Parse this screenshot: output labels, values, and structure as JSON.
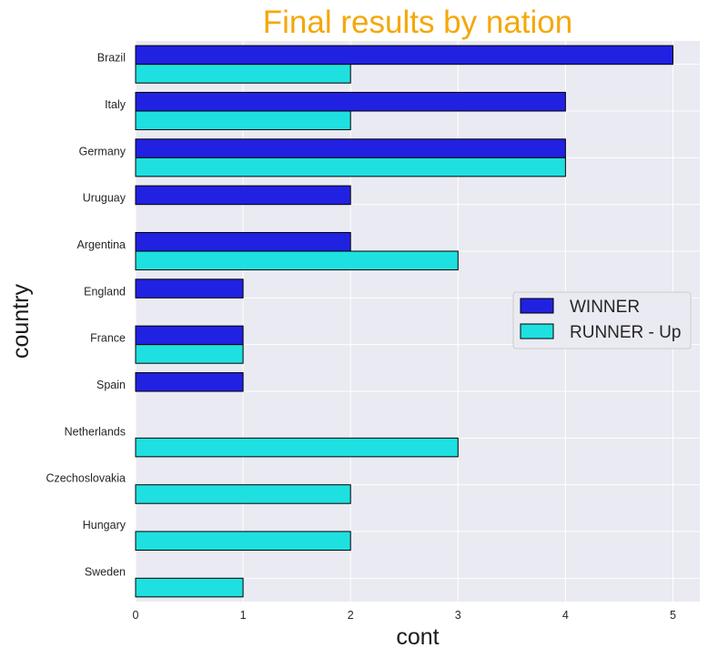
{
  "chart_data": {
    "type": "bar",
    "orientation": "horizontal",
    "title": "Final results by nation",
    "xlabel": "cont",
    "ylabel": "country",
    "categories": [
      "Brazil",
      "Italy",
      "Germany",
      "Uruguay",
      "Argentina",
      "England",
      "France",
      "Spain",
      "Netherlands",
      "Czechoslovakia",
      "Hungary",
      "Sweden"
    ],
    "series": [
      {
        "name": "WINNER",
        "color": "#2121e2",
        "values": [
          5,
          4,
          4,
          2,
          2,
          1,
          1,
          1,
          0,
          0,
          0,
          0
        ]
      },
      {
        "name": "RUNNER - Up",
        "color": "#1fe0e0",
        "values": [
          2,
          2,
          4,
          0,
          3,
          0,
          1,
          0,
          3,
          2,
          2,
          1
        ]
      }
    ],
    "xlim": [
      0,
      5.25
    ],
    "xticks": [
      0,
      1,
      2,
      3,
      4,
      5
    ],
    "grid": true,
    "legend_position": "center-right",
    "colors": {
      "title": "#f5a70a",
      "plot_background": "#eaeaf2",
      "grid": "#ffffff",
      "bar_edge": "#000000"
    }
  }
}
